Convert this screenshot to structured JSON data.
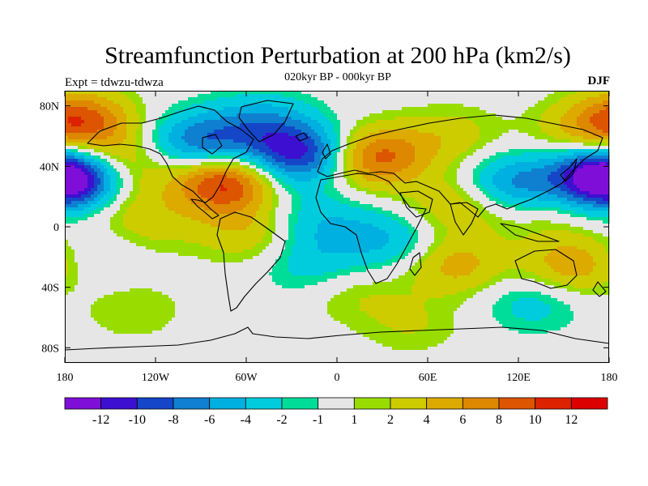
{
  "title": "Streamfunction Perturbation at 200 hPa (km2/s)",
  "subtitle": "020kyr BP - 000kyr BP",
  "left_string": "Expt = tdwzu-tdwza",
  "right_string": "DJF",
  "x_axis": {
    "ticks": [
      "180",
      "120W",
      "60W",
      "0",
      "60E",
      "120E",
      "180"
    ],
    "range": [
      -180,
      180
    ]
  },
  "y_axis": {
    "ticks": [
      "80N",
      "40N",
      "0",
      "40S",
      "80S"
    ],
    "range": [
      -90,
      90
    ]
  },
  "colorbar": {
    "labels": [
      "-12",
      "-10",
      "-8",
      "-6",
      "-4",
      "-2",
      "-1",
      "1",
      "2",
      "4",
      "6",
      "8",
      "10",
      "12"
    ],
    "colors": [
      "#7f0fd8",
      "#3d0fd0",
      "#1546c8",
      "#0f7fd0",
      "#00b0e0",
      "#00ccdd",
      "#00dd99",
      "#e6e6e6",
      "#99dd00",
      "#cccc00",
      "#ddaa00",
      "#dd8800",
      "#dd5500",
      "#dd2200",
      "#dd0000"
    ]
  },
  "chart_data": {
    "type": "heatmap",
    "title": "Streamfunction Perturbation at 200 hPa (km2/s)",
    "subtitle": "020kyr BP - 000kyr BP",
    "xlim": [
      -180,
      180
    ],
    "ylim": [
      -90,
      90
    ],
    "contour_levels": [
      -12,
      -10,
      -8,
      -6,
      -4,
      -2,
      -1,
      1,
      2,
      4,
      6,
      8,
      10,
      12
    ],
    "features": [
      {
        "lon": -170,
        "lat": 70,
        "value": 9
      },
      {
        "lon": -150,
        "lat": 42,
        "value": 6
      },
      {
        "lon": -175,
        "lat": 33,
        "value": -10
      },
      {
        "lon": 178,
        "lat": 33,
        "value": -10
      },
      {
        "lon": -75,
        "lat": 30,
        "value": 11
      },
      {
        "lon": -25,
        "lat": 48,
        "value": -11
      },
      {
        "lon": -90,
        "lat": 55,
        "value": -8
      },
      {
        "lon": -50,
        "lat": 68,
        "value": -5
      },
      {
        "lon": 25,
        "lat": 46,
        "value": 9
      },
      {
        "lon": 75,
        "lat": 60,
        "value": 3
      },
      {
        "lon": 118,
        "lat": 28,
        "value": -7
      },
      {
        "lon": 160,
        "lat": 63,
        "value": 3
      },
      {
        "lon": 135,
        "lat": 10,
        "value": 2
      },
      {
        "lon": 158,
        "lat": -25,
        "value": 6
      },
      {
        "lon": 130,
        "lat": -50,
        "value": -3
      },
      {
        "lon": 35,
        "lat": -10,
        "value": -4
      },
      {
        "lon": -20,
        "lat": -25,
        "value": -3
      },
      {
        "lon": 78,
        "lat": -25,
        "value": 5
      },
      {
        "lon": 80,
        "lat": 15,
        "value": 4
      },
      {
        "lon": 50,
        "lat": -65,
        "value": 2
      },
      {
        "lon": -135,
        "lat": -55,
        "value": 2
      },
      {
        "lon": -165,
        "lat": -22,
        "value": -2
      },
      {
        "lon": -120,
        "lat": 0,
        "value": 2
      },
      {
        "lon": -58,
        "lat": 5,
        "value": 3
      },
      {
        "lon": -55,
        "lat": -10,
        "value": 2
      },
      {
        "lon": -5,
        "lat": 0,
        "value": -3
      },
      {
        "lon": -140,
        "lat": 15,
        "value": 2
      },
      {
        "lon": -35,
        "lat": 10,
        "value": -2
      },
      {
        "lon": 12,
        "lat": -45,
        "value": 2
      }
    ]
  }
}
